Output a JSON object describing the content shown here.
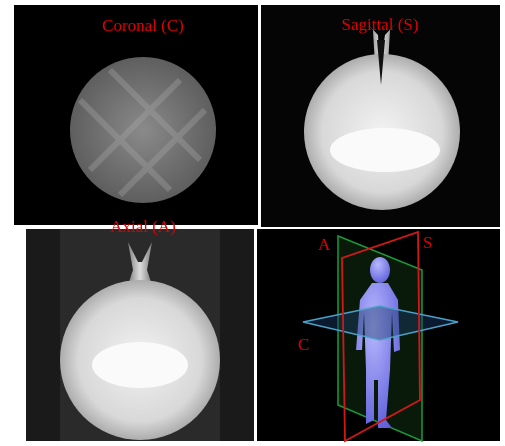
{
  "panels": [
    {
      "label": "Coronal (C)"
    },
    {
      "label": "Sagittal (S)"
    },
    {
      "label": "Axial (A)"
    }
  ],
  "diagram": {
    "labels": [
      "A",
      "S",
      "C"
    ]
  }
}
